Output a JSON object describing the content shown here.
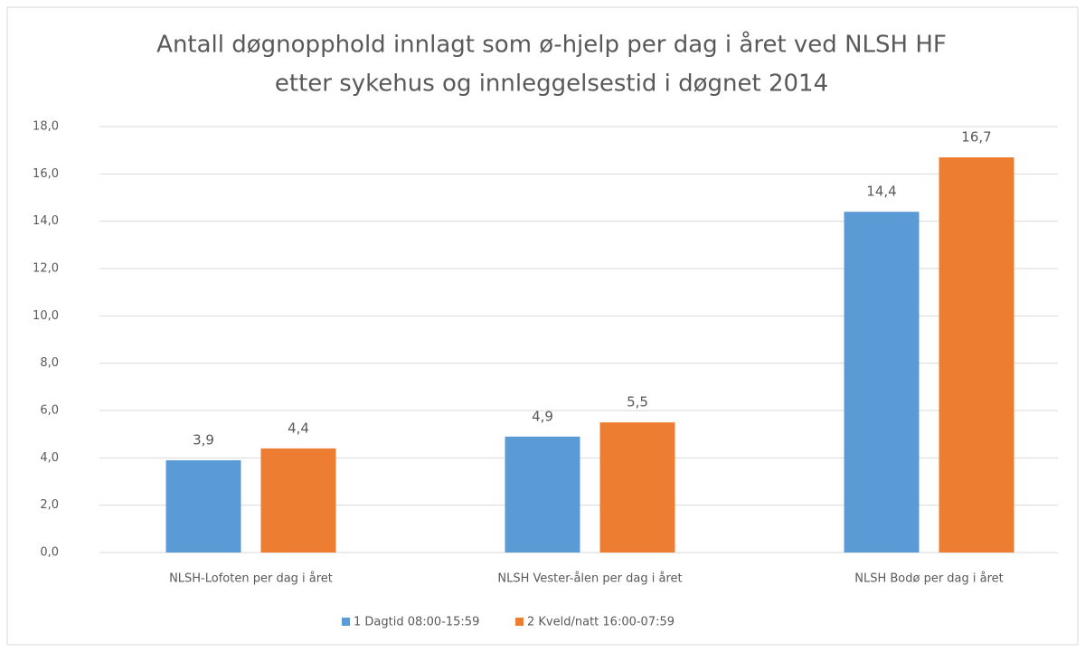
{
  "chart_data": {
    "type": "bar",
    "title": [
      "Antall døgnopphold innlagt som ø-hjelp per dag i året ved NLSH HF",
      "etter sykehus og innleggelsestid i døgnet 2014"
    ],
    "categories": [
      "NLSH-Lofoten per dag i året",
      "NLSH Vester-ålen per dag i året",
      "NLSH Bodø per dag i året"
    ],
    "series": [
      {
        "name": "1 Dagtid 08:00-15:59",
        "color": "#5b9bd5",
        "values": [
          3.9,
          4.9,
          14.4
        ],
        "value_labels": [
          "3,9",
          "4,9",
          "14,4"
        ]
      },
      {
        "name": "2 Kveld/natt 16:00-07:59",
        "color": "#ed7d31",
        "values": [
          4.4,
          5.5,
          16.7
        ],
        "value_labels": [
          "4,4",
          "5,5",
          "16,7"
        ]
      }
    ],
    "ylim": [
      0,
      18
    ],
    "yticks": [
      {
        "value": 0,
        "label": "0,0"
      },
      {
        "value": 2,
        "label": "2,0"
      },
      {
        "value": 4,
        "label": "4,0"
      },
      {
        "value": 6,
        "label": "6,0"
      },
      {
        "value": 8,
        "label": "8,0"
      },
      {
        "value": 10,
        "label": "10,0"
      },
      {
        "value": 12,
        "label": "12,0"
      },
      {
        "value": 14,
        "label": "14,0"
      },
      {
        "value": 16,
        "label": "16,0"
      },
      {
        "value": 18,
        "label": "18,0"
      }
    ],
    "grid": true,
    "legend": "bottom"
  }
}
